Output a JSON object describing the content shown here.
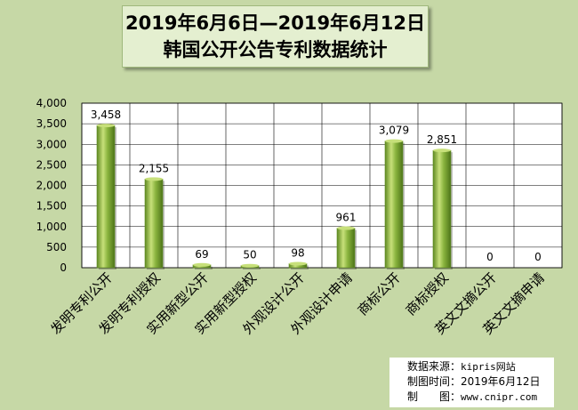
{
  "title": {
    "line1": "2019年6月6日—2019年6月12日",
    "line2": "韩国公开公告专利数据统计"
  },
  "chart_data": {
    "type": "bar",
    "categories": [
      "发明专利公开",
      "发明专利授权",
      "实用新型公开",
      "实用新型授权",
      "外观设计公开",
      "外观设计申请",
      "商标公开",
      "商标授权",
      "英文文摘公开",
      "英文文摘申请"
    ],
    "values": [
      3458,
      2155,
      69,
      50,
      98,
      961,
      3079,
      2851,
      0,
      0
    ],
    "value_labels": [
      "3,458",
      "2,155",
      "69",
      "50",
      "98",
      "961",
      "3,079",
      "2,851",
      "0",
      "0"
    ],
    "ylim": [
      0,
      4000
    ],
    "yticks": [
      0,
      500,
      1000,
      1500,
      2000,
      2500,
      3000,
      3500,
      4000
    ],
    "ytick_labels": [
      "0",
      "500",
      "1,000",
      "1,500",
      "2,000",
      "2,500",
      "3,000",
      "3,500",
      "4,000"
    ],
    "grid": true,
    "colors": {
      "bar": "#8ab43e",
      "bar_light": "#c7e07a",
      "bar_dark": "#5f8a22",
      "plot_bg": "#ffffff",
      "gridline": "#000000"
    }
  },
  "source_note": {
    "source_label": "数据来源：",
    "source_value": "kipris网站",
    "time_label": "制图时间：",
    "time_value": "2019年6月12日",
    "maker_label": "制　　图：",
    "maker_value": "www.cnipr.com"
  }
}
